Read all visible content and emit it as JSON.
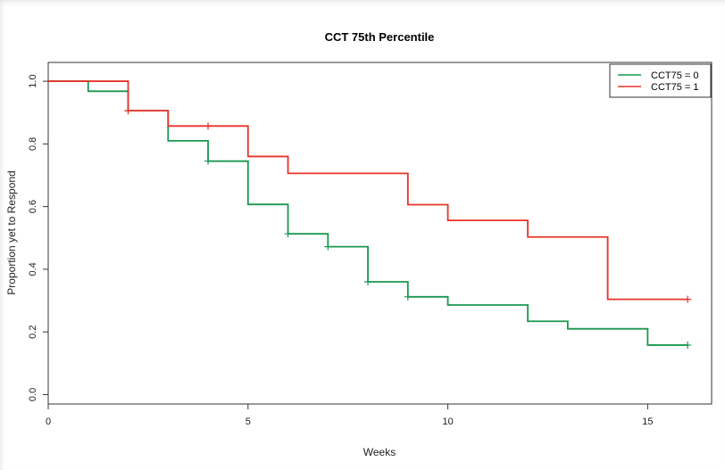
{
  "chart_data": {
    "type": "line",
    "title": "CCT 75th Percentile",
    "xlabel": "Weeks",
    "ylabel": "Proportion yet to Respond",
    "xlim": [
      0,
      16.6
    ],
    "ylim": [
      -0.03,
      1.06
    ],
    "x_ticks": [
      0,
      5,
      10,
      15
    ],
    "y_ticks": [
      0.0,
      0.2,
      0.4,
      0.6,
      0.8,
      1.0
    ],
    "y_tick_labels": [
      "0.0",
      "0.2",
      "0.4",
      "0.6",
      "0.8",
      "1.0"
    ],
    "grid": false,
    "legend_position": "top-right",
    "series": [
      {
        "name": "CCT75 = 0",
        "color": "#1a9850",
        "steps": [
          [
            0,
            1.0
          ],
          [
            1,
            0.968
          ],
          [
            2,
            0.906
          ],
          [
            3,
            0.81
          ],
          [
            4,
            0.745
          ],
          [
            5,
            0.607
          ],
          [
            6,
            0.513
          ],
          [
            7,
            0.472
          ],
          [
            8,
            0.36
          ],
          [
            9,
            0.312
          ],
          [
            10,
            0.286
          ],
          [
            12,
            0.234
          ],
          [
            13,
            0.21
          ],
          [
            15,
            0.158
          ]
        ],
        "end_x": 16,
        "censored": [
          [
            2,
            0.906
          ],
          [
            4,
            0.745
          ],
          [
            6,
            0.513
          ],
          [
            7,
            0.472
          ],
          [
            8,
            0.36
          ],
          [
            9,
            0.312
          ],
          [
            16,
            0.158
          ]
        ]
      },
      {
        "name": "CCT75 = 1",
        "color": "#e8332a",
        "steps": [
          [
            0,
            1.0
          ],
          [
            2,
            0.906
          ],
          [
            3,
            0.857
          ],
          [
            5,
            0.76
          ],
          [
            6,
            0.706
          ],
          [
            9,
            0.606
          ],
          [
            10,
            0.556
          ],
          [
            12,
            0.503
          ],
          [
            14,
            0.304
          ]
        ],
        "end_x": 16,
        "censored": [
          [
            2,
            0.906
          ],
          [
            4,
            0.857
          ],
          [
            16,
            0.304
          ]
        ]
      }
    ]
  }
}
